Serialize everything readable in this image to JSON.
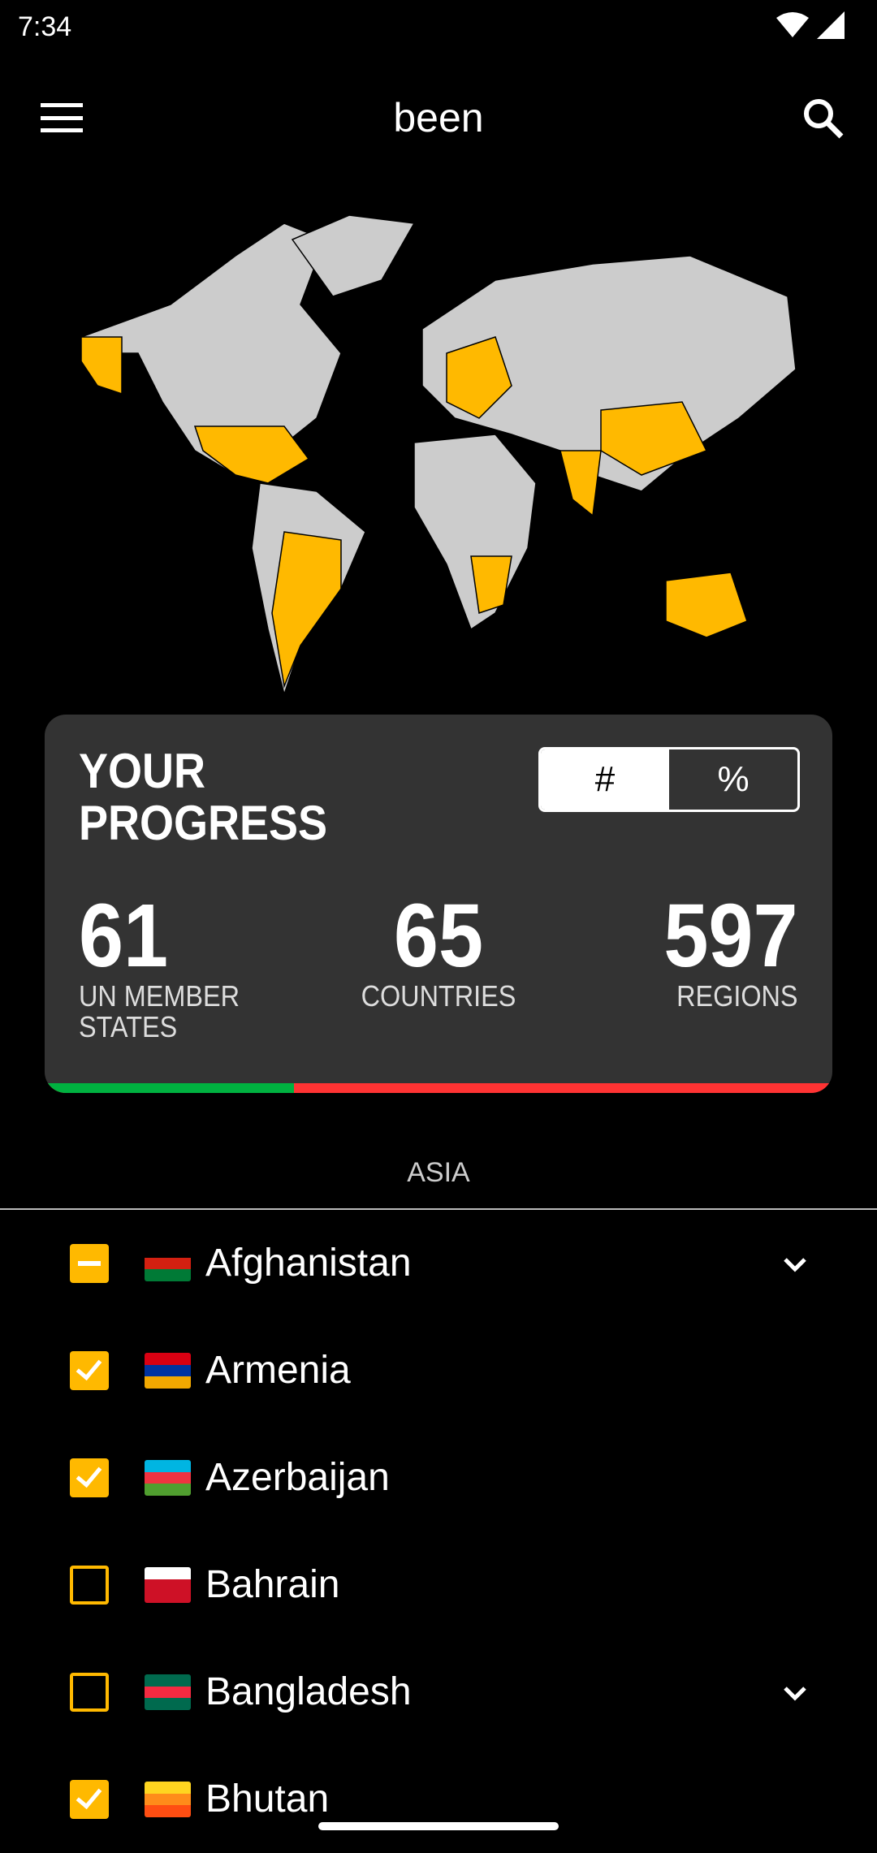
{
  "status_bar": {
    "time": "7:34"
  },
  "toolbar": {
    "title": "been"
  },
  "colors": {
    "visited": "#ffb900",
    "unvisited": "#cccccc",
    "card": "#333333",
    "progress_done": "#00b140",
    "progress_remaining": "#ff3333"
  },
  "progress": {
    "title_line1": "YOUR",
    "title_line2": "PROGRESS",
    "toggle": [
      "#",
      "%"
    ],
    "selected_toggle": "#",
    "fraction": 0.316,
    "stats": [
      {
        "value": "61",
        "label_line1": "UN MEMBER",
        "label_line2": "STATES"
      },
      {
        "value": "65",
        "label": "COUNTRIES"
      },
      {
        "value": "597",
        "label": "REGIONS"
      }
    ]
  },
  "section": {
    "title": "ASIA"
  },
  "countries": [
    {
      "name": "Afghanistan",
      "state": "partial",
      "expandable": true
    },
    {
      "name": "Armenia",
      "state": "checked",
      "expandable": false
    },
    {
      "name": "Azerbaijan",
      "state": "checked",
      "expandable": false
    },
    {
      "name": "Bahrain",
      "state": "empty",
      "expandable": false
    },
    {
      "name": "Bangladesh",
      "state": "empty",
      "expandable": true
    },
    {
      "name": "Bhutan",
      "state": "checked",
      "expandable": false
    }
  ]
}
